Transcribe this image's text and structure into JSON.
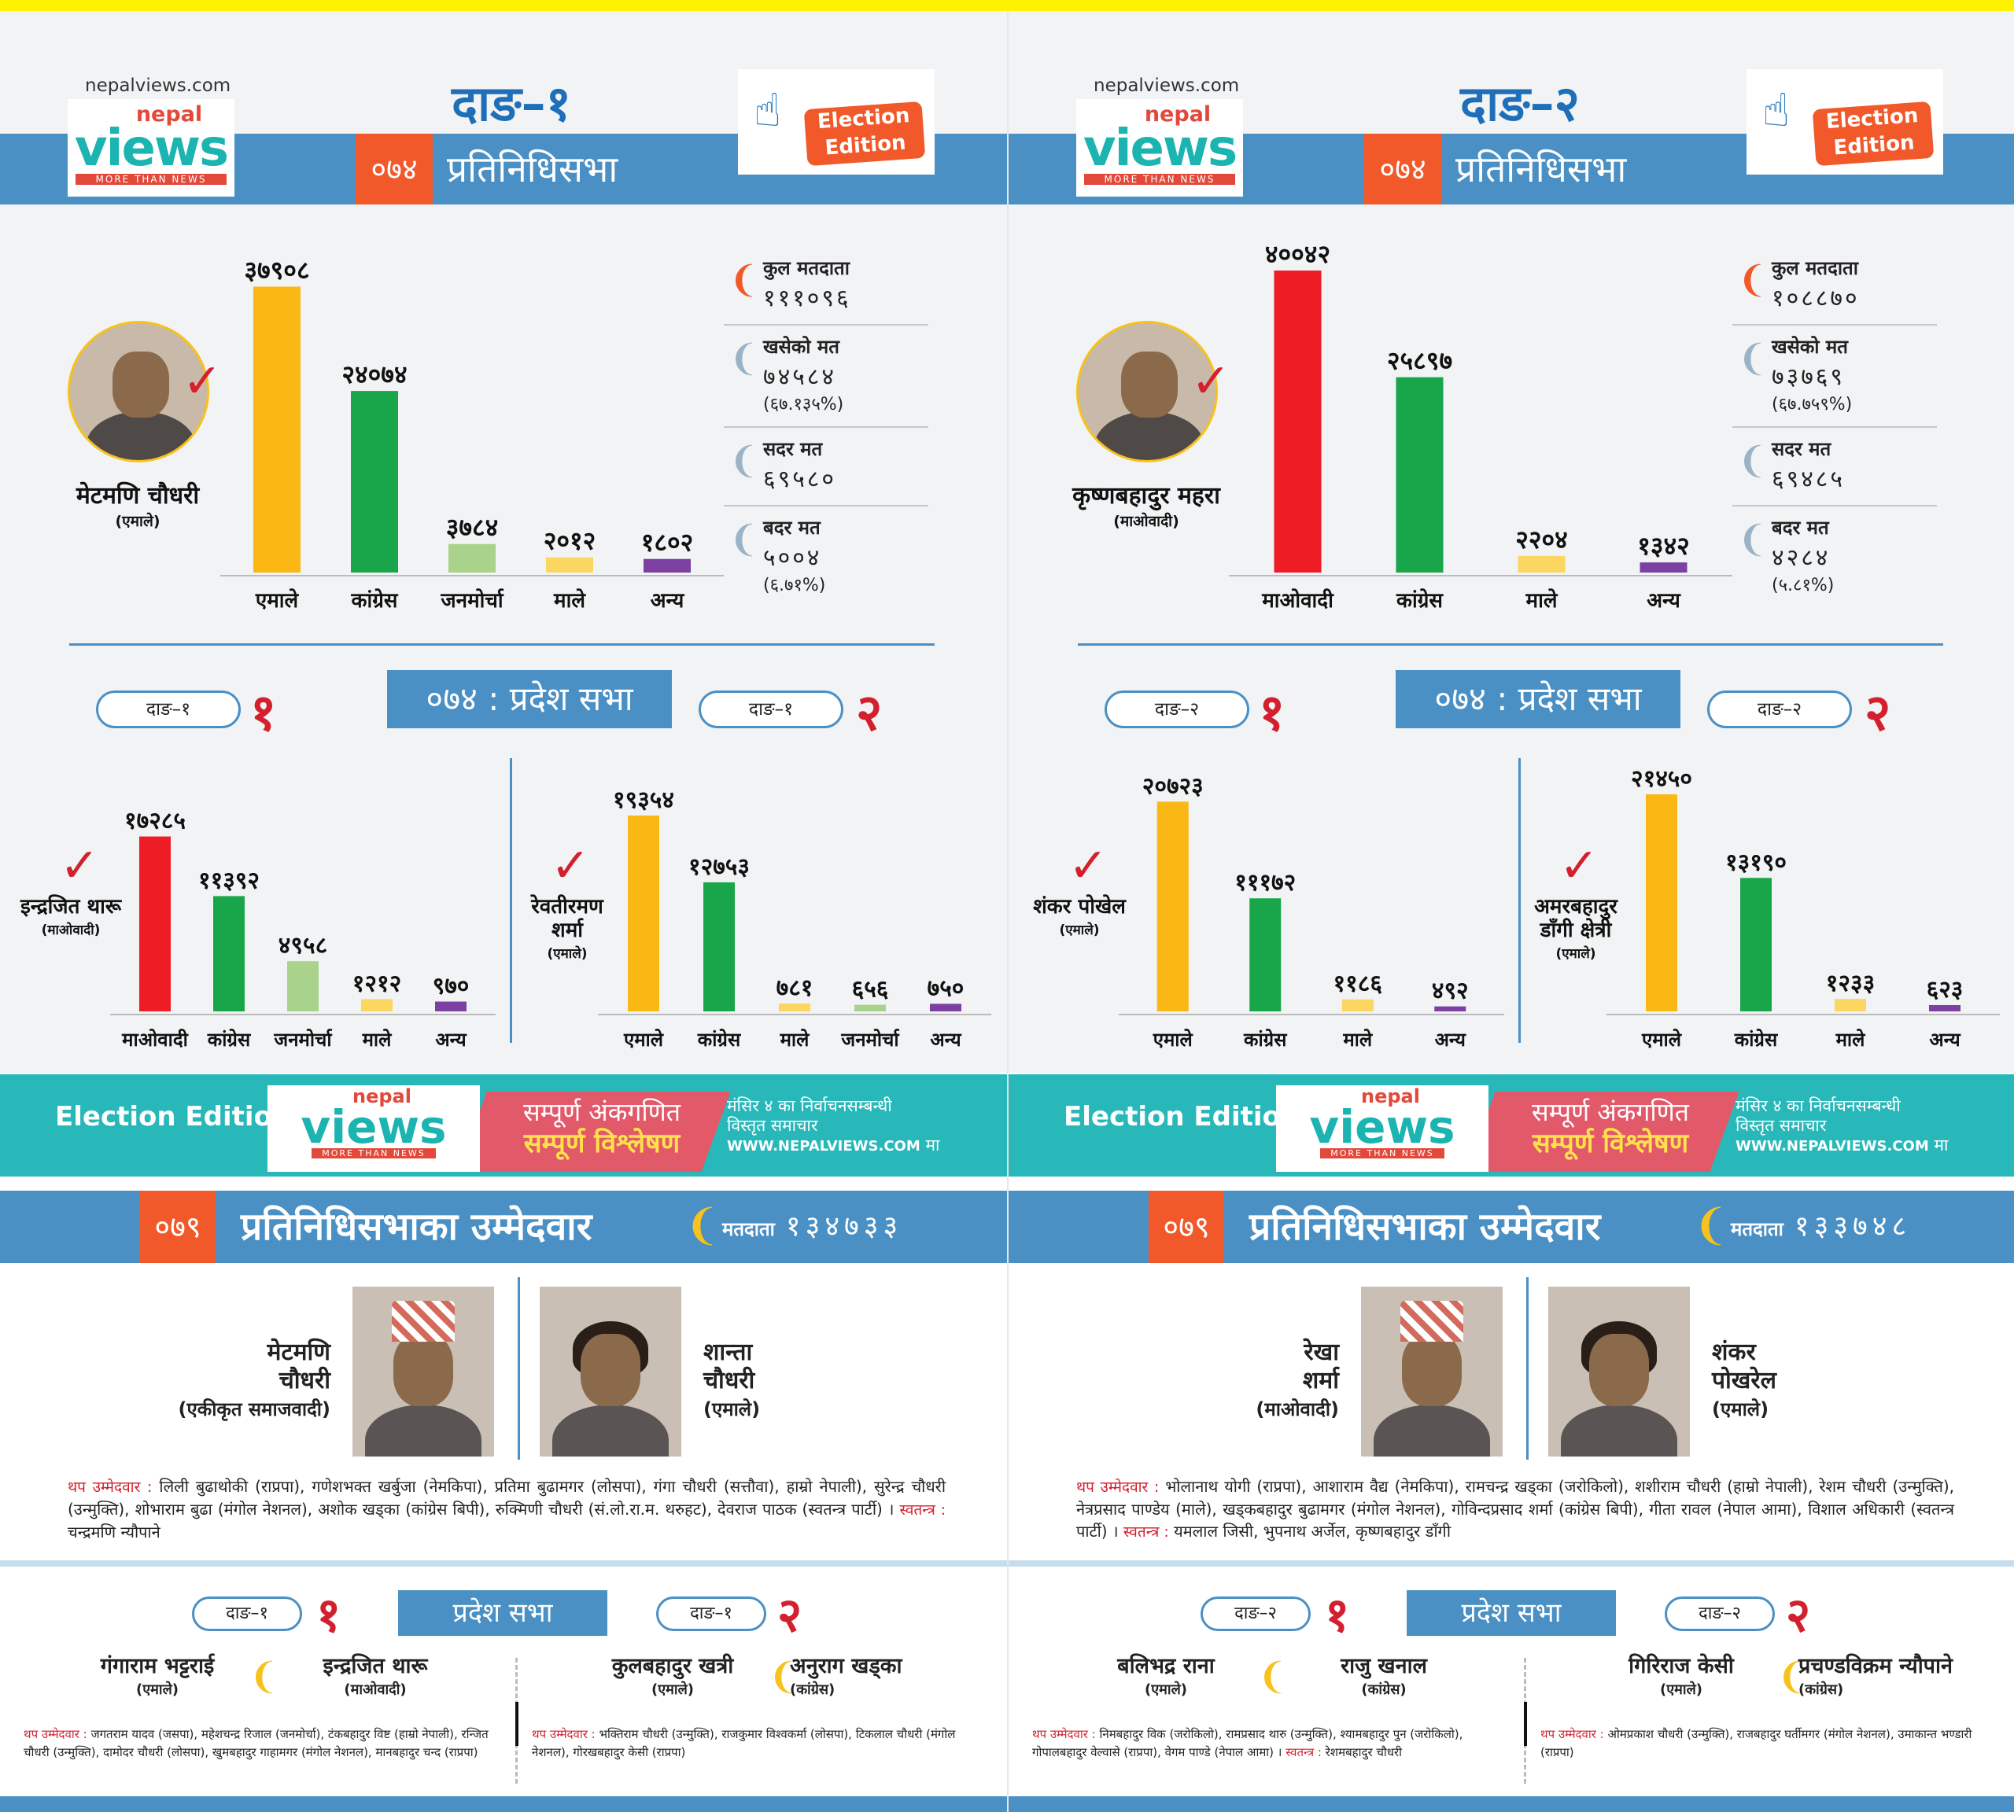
{
  "panels": [
    {
      "site": "nepalviews.com",
      "logo": {
        "nepal": "nepal",
        "views": "views",
        "tag": "MORE THAN NEWS"
      },
      "title": "दाङ–१",
      "year": "०७४",
      "house": "प्रतिनिधिसभा",
      "election_edition": "Election Edition",
      "winner": {
        "name": "मेटमणि चौधरी",
        "party": "(एमाले)"
      },
      "stats": [
        {
          "label": "कुल मतदाता",
          "value": "१११०९६",
          "extra": ""
        },
        {
          "label": "खसेको मत",
          "value": "७४५८४",
          "extra": "(६७.१३५%)"
        },
        {
          "label": "सदर मत",
          "value": "६९५८०",
          "extra": ""
        },
        {
          "label": "बदर मत",
          "value": "५००४",
          "extra": "(६.७१%)"
        }
      ],
      "pradesh_title": "०७४ : प्रदेश सभा",
      "p1": {
        "pill": "दाङ–१",
        "num": "१",
        "winner": "इन्द्रजित थारू",
        "party": "(माओवादी)"
      },
      "p2": {
        "pill": "दाङ–१",
        "num": "२",
        "winner": "रेवतीरमण शर्मा",
        "party": "(एमाले)"
      },
      "band": {
        "edition": "Election Edition- 2079",
        "line1": "सम्पूर्ण अंकगणित",
        "line2": "सम्पूर्ण विश्लेषण",
        "note": "मंसिर ४ का निर्वाचनसम्बन्धी",
        "note2": "विस्तृत समाचार",
        "url": "WWW.NEPALVIEWS.COM",
        "url_suffix": "मा"
      },
      "cand_header": {
        "year": "०७९",
        "title": "प्रतिनिधिसभाका उम्मेदवार",
        "voters_label": "मतदाता",
        "voters": "१३४७३३"
      },
      "cand_left": {
        "name1": "मेटमणि",
        "name2": "चौधरी",
        "party": "(एकीकृत समाजवादी)"
      },
      "cand_right": {
        "name1": "शान्ता",
        "name2": "चौधरी",
        "party": "(एमाले)"
      },
      "others_label": "थप उम्मेदवार :",
      "others": "लिली बुढाथोकी (राप्रपा), गणेशभक्त खर्बुजा (नेमकिपा), प्रतिमा बुढामगर (लोसपा), गंगा चौधरी (सत्तौवा), हाम्रो नेपाली), सुरेन्द्र चौधरी (उन्मुक्ति), शोभाराम बुढा (मंगोल नेशनल), अशोक खड्का (कांग्रेस बिपी), रुक्मिणी चौधरी (सं.लो.रा.म. थरुहट), देवराज पाठक (स्वतन्त्र पार्टी) ।",
      "indep_label": "स्वतन्त्र :",
      "indep": "चन्द्रमणि न्यौपाने",
      "pradesh2_title": "प्रदेश सभा",
      "pr1": {
        "pill": "दाङ–१",
        "num": "१",
        "a": "गंगाराम भट्टराई",
        "ap": "(एमाले)",
        "b": "इन्द्रजित थारू",
        "bp": "(माओवादी)",
        "others_label": "थप उम्मेदवार :",
        "others": "जगतराम यादव (जसपा), महेशचन्द्र रिजाल (जनमोर्चा), टंकबहादुर विष्ट (हाम्रो नेपाली), रन्जित चौधरी (उन्मुक्ति), दामोदर चौधरी (लोसपा), खुमबहादुर गाहामगर (मंगोल नेशनल), मानबहादुर चन्द (राप्रपा)"
      },
      "pr2": {
        "pill": "दाङ–१",
        "num": "२",
        "a": "कुलबहादुर खत्री",
        "ap": "(एमाले)",
        "b": "अनुराग खड्का",
        "bp": "(कांग्रेस)",
        "others_label": "थप उम्मेदवार :",
        "others": "भक्तिराम चौधरी (उन्मुक्ति), राजकुमार विश्वकर्मा (लोसपा), टिकलाल चौधरी (मंगोल नेशनल), गोरखबहादुर केसी (राप्रपा)"
      }
    },
    {
      "site": "nepalviews.com",
      "logo": {
        "nepal": "nepal",
        "views": "views",
        "tag": "MORE THAN NEWS"
      },
      "title": "दाङ–२",
      "year": "०७४",
      "house": "प्रतिनिधिसभा",
      "election_edition": "Election Edition",
      "winner": {
        "name": "कृष्णबहादुर महरा",
        "party": "(माओवादी)"
      },
      "stats": [
        {
          "label": "कुल मतदाता",
          "value": "१०८८७०",
          "extra": ""
        },
        {
          "label": "खसेको मत",
          "value": "७३७६९",
          "extra": "(६७.७५९%)"
        },
        {
          "label": "सदर मत",
          "value": "६९४८५",
          "extra": ""
        },
        {
          "label": "बदर मत",
          "value": "४२८४",
          "extra": "(५.८१%)"
        }
      ],
      "pradesh_title": "०७४ : प्रदेश सभा",
      "p1": {
        "pill": "दाङ–२",
        "num": "१",
        "winner": "शंकर पोखेल",
        "party": "(एमाले)"
      },
      "p2": {
        "pill": "दाङ–२",
        "num": "२",
        "winner": "अमरबहादुर डाँगी क्षेत्री",
        "party": "(एमाले)"
      },
      "band": {
        "edition": "Election Edition- 2079",
        "line1": "सम्पूर्ण अंकगणित",
        "line2": "सम्पूर्ण विश्लेषण",
        "note": "मंसिर ४ का निर्वाचनसम्बन्धी",
        "note2": "विस्तृत समाचार",
        "url": "WWW.NEPALVIEWS.COM",
        "url_suffix": "मा"
      },
      "cand_header": {
        "year": "०७९",
        "title": "प्रतिनिधिसभाका उम्मेदवार",
        "voters_label": "मतदाता",
        "voters": "१३३७४८"
      },
      "cand_left": {
        "name1": "रेखा",
        "name2": "शर्मा",
        "party": "(माओवादी)"
      },
      "cand_right": {
        "name1": "शंकर",
        "name2": "पोखरेल",
        "party": "(एमाले)"
      },
      "others_label": "थप उम्मेदवार :",
      "others": "भोलानाथ योगी (राप्रपा), आशाराम वैद्य (नेमकिपा), रामचन्द्र खड्का (जरोकिलो), शशीराम चौधरी (हाम्रो नेपाली), रेशम चौधरी (उन्मुक्ति), नेत्रप्रसाद पाण्डेय (माले), खड्कबहादुर बुढामगर (मंगोल नेशनल), गोविन्दप्रसाद शर्मा (कांग्रेस बिपी), गीता रावल (नेपाल आमा), विशाल अधिकारी (स्वतन्त्र पार्टी) ।",
      "indep_label": "स्वतन्त्र :",
      "indep": "यमलाल जिसी, भुपनाथ अर्जेल, कृष्णबहादुर डाँगी",
      "pradesh2_title": "प्रदेश सभा",
      "pr1": {
        "pill": "दाङ–२",
        "num": "१",
        "a": "बलिभद्र राना",
        "ap": "(एमाले)",
        "b": "राजु खनाल",
        "bp": "(कांग्रेस)",
        "others_label": "थप उम्मेदवार :",
        "others": "निमबहादुर विक (जरोकिलो), रामप्रसाद थारु (उन्मुक्ति), श्यामबहादुर पुन (जरोकिलो), गोपालबहादुर वेल्वासे (राप्रपा), वेगम पाण्डे (नेपाल आमा) ।",
        "indep_label": "स्वतन्त्र :",
        "indep": "रेशमबहादुर चौधरी"
      },
      "pr2": {
        "pill": "दाङ–२",
        "num": "२",
        "a": "गिरिराज केसी",
        "ap": "(एमाले)",
        "b": "प्रचण्डविक्रम न्यौपाने",
        "bp": "(कांग्रेस)",
        "others_label": "थप उम्मेदवार :",
        "others": "ओमप्रकाश चौधरी (उन्मुक्ति), राजबहादुर घर्तीमगर (मंगोल नेशनल), उमाकान्त भण्डारी (राप्रपा)"
      }
    }
  ],
  "chart_data": [
    {
      "type": "bar",
      "title": "दाङ–१ प्रतिनिधिसभा",
      "categories": [
        "एमाले",
        "कांग्रेस",
        "जनमोर्चा",
        "माले",
        "अन्य"
      ],
      "values": [
        37908,
        24074,
        3784,
        2012,
        1802
      ],
      "labels": [
        "३७९०८",
        "२४०७४",
        "३७८४",
        "२०१२",
        "१८०२"
      ],
      "colors": [
        "#fbb814",
        "#19a64a",
        "#a9d28b",
        "#fbd660",
        "#7c3fa2"
      ],
      "ylim": [
        0,
        40042
      ]
    },
    {
      "type": "bar",
      "title": "दाङ–१ प्रदेश १",
      "categories": [
        "माओवादी",
        "कांग्रेस",
        "जनमोर्चा",
        "माले",
        "अन्य"
      ],
      "values": [
        17285,
        11392,
        4958,
        1212,
        970
      ],
      "labels": [
        "१७२८५",
        "११३९२",
        "४९५८",
        "१२१२",
        "९७०"
      ],
      "colors": [
        "#ee1c25",
        "#19a64a",
        "#a9d28b",
        "#fbd660",
        "#7c3fa2"
      ],
      "ylim": [
        0,
        21450
      ]
    },
    {
      "type": "bar",
      "title": "दाङ–१ प्रदेश २",
      "categories": [
        "एमाले",
        "कांग्रेस",
        "माले",
        "जनमोर्चा",
        "अन्य"
      ],
      "values": [
        19354,
        12753,
        781,
        656,
        750
      ],
      "labels": [
        "१९३५४",
        "१२७५३",
        "७८१",
        "६५६",
        "७५०"
      ],
      "colors": [
        "#fbb814",
        "#19a64a",
        "#fbd660",
        "#a9d28b",
        "#7c3fa2"
      ],
      "ylim": [
        0,
        21450
      ]
    },
    {
      "type": "bar",
      "title": "दाङ–२ प्रतिनिधिसभा",
      "categories": [
        "माओवादी",
        "कांग्रेस",
        "माले",
        "अन्य"
      ],
      "values": [
        40042,
        25897,
        2204,
        1342
      ],
      "labels": [
        "४००४२",
        "२५८९७",
        "२२०४",
        "१३४२"
      ],
      "colors": [
        "#ee1c25",
        "#19a64a",
        "#fbd660",
        "#7c3fa2"
      ],
      "ylim": [
        0,
        40042
      ]
    },
    {
      "type": "bar",
      "title": "दाङ–२ प्रदेश १",
      "categories": [
        "एमाले",
        "कांग्रेस",
        "माले",
        "अन्य"
      ],
      "values": [
        20723,
        11172,
        1186,
        492
      ],
      "labels": [
        "२०७२३",
        "१११७२",
        "११८६",
        "४९२"
      ],
      "colors": [
        "#fbb814",
        "#19a64a",
        "#fbd660",
        "#7c3fa2"
      ],
      "ylim": [
        0,
        21450
      ]
    },
    {
      "type": "bar",
      "title": "दाङ–२ प्रदेश २",
      "categories": [
        "एमाले",
        "कांग्रेस",
        "माले",
        "अन्य"
      ],
      "values": [
        21450,
        13190,
        1233,
        623
      ],
      "labels": [
        "२१४५०",
        "१३१९०",
        "१२३३",
        "६२३"
      ],
      "colors": [
        "#fbb814",
        "#19a64a",
        "#fbd660",
        "#7c3fa2"
      ],
      "ylim": [
        0,
        21450
      ]
    }
  ]
}
